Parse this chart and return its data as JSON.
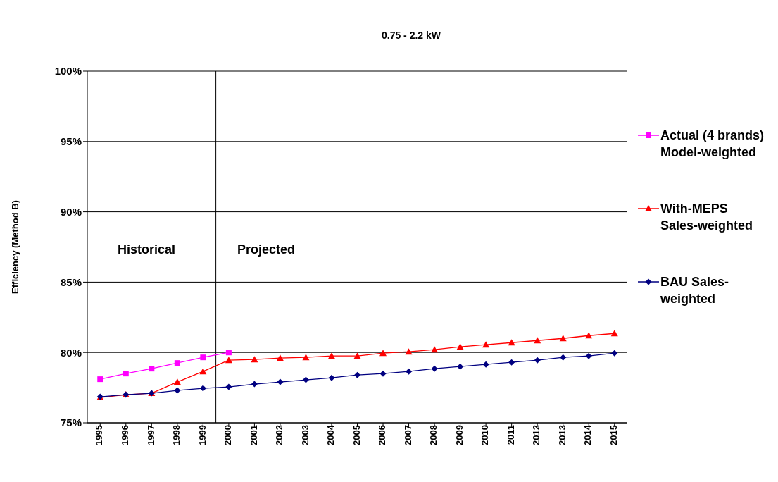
{
  "chart_data": {
    "type": "line",
    "title": "0.75 - 2.2 kW",
    "ylabel": "Efficiency (Method B)",
    "x": [
      1995,
      1996,
      1997,
      1998,
      1999,
      2000,
      2001,
      2002,
      2003,
      2004,
      2005,
      2006,
      2007,
      2008,
      2009,
      2010,
      2011,
      2012,
      2013,
      2014,
      2015
    ],
    "xlim": [
      1994.5,
      2015.5
    ],
    "xticks": [
      1995,
      1996,
      1997,
      1998,
      1999,
      2000,
      2001,
      2002,
      2003,
      2004,
      2005,
      2006,
      2007,
      2008,
      2009,
      2010,
      2011,
      2012,
      2013,
      2014,
      2015
    ],
    "ylim": [
      75,
      100
    ],
    "yticks": [
      {
        "value": 75,
        "label": "75%"
      },
      {
        "value": 80,
        "label": "80%"
      },
      {
        "value": 85,
        "label": "85%"
      },
      {
        "value": 90,
        "label": "90%"
      },
      {
        "value": 95,
        "label": "95%"
      },
      {
        "value": 100,
        "label": "100%"
      }
    ],
    "series": [
      {
        "name": "Actual (4 brands) Model-weighted",
        "color": "#ff00ff",
        "marker": "square",
        "values": [
          78.1,
          78.5,
          78.85,
          79.25,
          79.65,
          80.0,
          null,
          null,
          null,
          null,
          null,
          null,
          null,
          null,
          null,
          null,
          null,
          null,
          null,
          null,
          null
        ]
      },
      {
        "name": "With-MEPS Sales-weighted",
        "color": "#ff0000",
        "marker": "triangle",
        "values": [
          76.8,
          77.0,
          77.1,
          77.9,
          78.65,
          79.45,
          79.5,
          79.6,
          79.65,
          79.75,
          79.75,
          79.95,
          80.05,
          80.2,
          80.4,
          80.55,
          80.7,
          80.85,
          81.0,
          81.2,
          81.35
        ]
      },
      {
        "name": "BAU Sales-weighted",
        "color": "#000080",
        "marker": "diamond",
        "values": [
          76.85,
          77.0,
          77.1,
          77.3,
          77.45,
          77.55,
          77.75,
          77.9,
          78.05,
          78.2,
          78.4,
          78.5,
          78.65,
          78.85,
          79.0,
          79.15,
          79.3,
          79.45,
          79.65,
          79.75,
          79.95
        ]
      }
    ],
    "ref_lines": [
      {
        "axis": "x",
        "value": 1999.5,
        "color": "#000000"
      }
    ],
    "annotations": [
      "Historical",
      "Projected"
    ],
    "grid": "y",
    "legend": "right",
    "line_style": "solid"
  }
}
